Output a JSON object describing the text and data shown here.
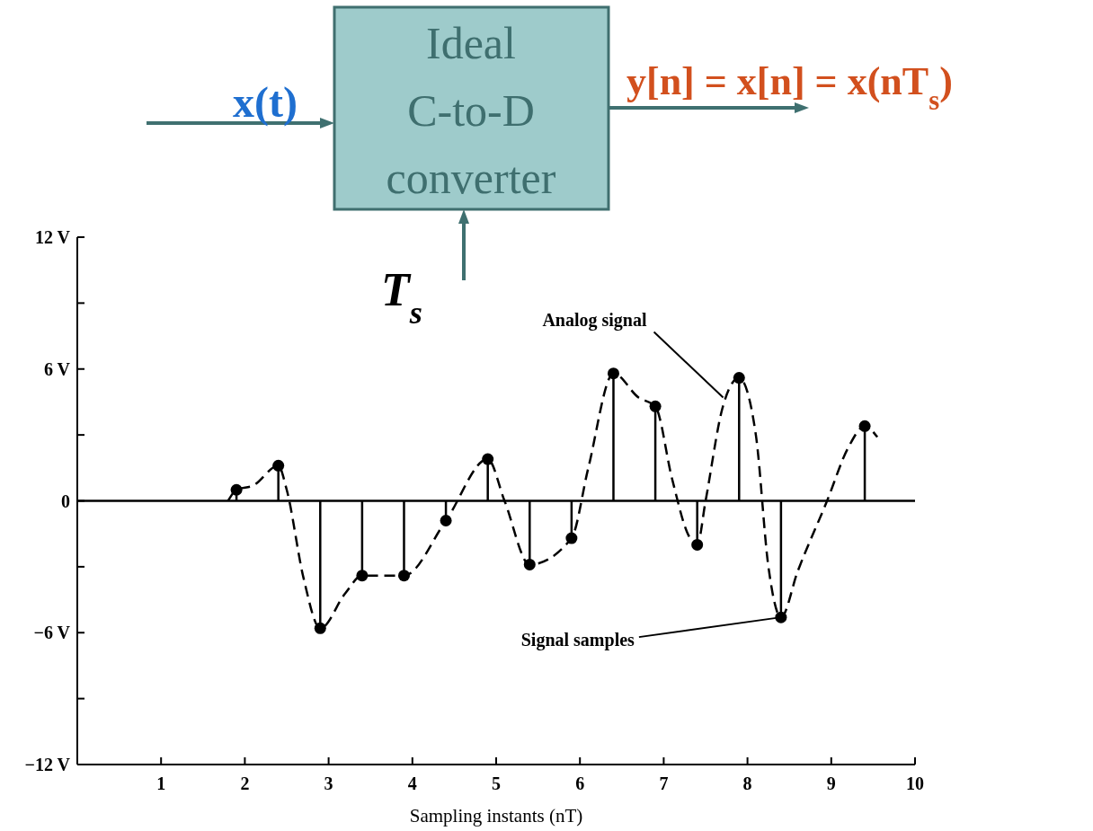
{
  "chart_data": [
    {
      "type": "other",
      "annotations": [
        "x(t)",
        "Ideal\nC-to-D\nconverter",
        "y[n] = x[n] = x(nT$_{s}$)",
        "T$_{s}$"
      ]
    },
    {
      "type": "lollipop",
      "xlabel": "Sampling instants (nT)",
      "xlim": [
        0,
        10
      ],
      "xticks": [
        1,
        2,
        3,
        4,
        5,
        6,
        7,
        8,
        9,
        10
      ],
      "ylim": [
        -12,
        12
      ],
      "yticks": [
        {
          "value": -12,
          "label": "−12 V"
        },
        {
          "value": -9,
          "label": null
        },
        {
          "value": -6,
          "label": "−6 V"
        },
        {
          "value": -3,
          "label": null
        },
        {
          "value": 0,
          "label": "0"
        },
        {
          "value": 3,
          "label": null
        },
        {
          "value": 6,
          "label": "6 V"
        },
        {
          "value": 9,
          "label": null
        },
        {
          "value": 12,
          "label": "12 V"
        }
      ],
      "ref_lines": [
        {
          "axis": "y",
          "value": 0,
          "color": "#000000"
        }
      ],
      "series": [
        {
          "type": "line",
          "color": "#000000",
          "line_style": "dashed",
          "marker": "none",
          "x": [
            1.8,
            1.9,
            2.1,
            2.4,
            2.5,
            2.7,
            2.9,
            3.2,
            3.4,
            3.9,
            4.4,
            4.9,
            5.1,
            5.4,
            5.9,
            6.1,
            6.4,
            6.7,
            6.9,
            7.1,
            7.3,
            7.4,
            7.5,
            7.7,
            7.9,
            8.1,
            8.25,
            8.4,
            8.6,
            8.95,
            9.2,
            9.4,
            9.55
          ],
          "values": [
            0,
            0.5,
            0.7,
            1.6,
            0.5,
            -3.5,
            -5.8,
            -4.2,
            -3.4,
            -3.4,
            -0.9,
            1.9,
            0,
            -2.9,
            -1.7,
            1.5,
            5.8,
            4.7,
            4.3,
            1.0,
            -1.6,
            -2.0,
            0,
            4.2,
            5.6,
            3.0,
            -3,
            -5.3,
            -3.2,
            0,
            2.4,
            3.4,
            2.9
          ]
        },
        {
          "type": "lollipop",
          "color": "#000000",
          "marker": "circle",
          "x": [
            1.9,
            2.4,
            2.9,
            3.4,
            3.9,
            4.4,
            4.9,
            5.4,
            5.9,
            6.4,
            6.9,
            7.4,
            7.9,
            8.4,
            9.4
          ],
          "values": [
            0.5,
            1.6,
            -5.8,
            -3.4,
            -3.4,
            -0.9,
            1.9,
            -2.9,
            -1.7,
            5.8,
            4.3,
            -2.0,
            5.6,
            -5.3,
            3.4
          ]
        }
      ],
      "annotations": [
        {
          "text": "Analog signal",
          "x": 7.71,
          "y": 4.7
        },
        {
          "text": "Signal samples",
          "x": 8.4,
          "y": -5.3
        }
      ]
    }
  ]
}
